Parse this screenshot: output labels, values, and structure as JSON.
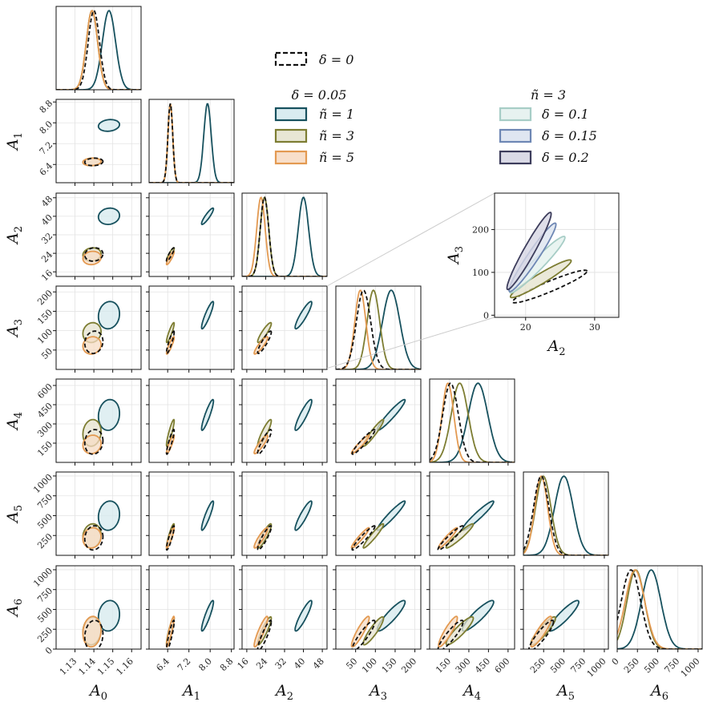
{
  "chart_data": {
    "type": "corner",
    "title": "",
    "parameters": [
      {
        "label": "A0",
        "sub": "0",
        "range": [
          1.12,
          1.165
        ],
        "ticks": [
          1.13,
          1.14,
          1.15,
          1.16
        ],
        "ticklabels": [
          "1.13",
          "1.14",
          "1.15",
          "1.16"
        ]
      },
      {
        "label": "A1",
        "sub": "1",
        "range": [
          5.7,
          8.9
        ],
        "ticks": [
          6.4,
          7.2,
          8.0,
          8.8
        ],
        "ticklabels": [
          "6.4",
          "7.2",
          "8.0",
          "8.8"
        ]
      },
      {
        "label": "A2",
        "sub": "2",
        "range": [
          14,
          50
        ],
        "ticks": [
          16,
          24,
          32,
          40,
          48
        ],
        "ticklabels": [
          "16",
          "24",
          "32",
          "40",
          "48"
        ]
      },
      {
        "label": "A3",
        "sub": "3",
        "range": [
          0,
          215
        ],
        "ticks": [
          50,
          100,
          150,
          200
        ],
        "ticklabels": [
          "50",
          "100",
          "150",
          "200"
        ]
      },
      {
        "label": "A4",
        "sub": "4",
        "range": [
          0,
          650
        ],
        "ticks": [
          150,
          300,
          450,
          600
        ],
        "ticklabels": [
          "150",
          "300",
          "450",
          "600"
        ]
      },
      {
        "label": "A5",
        "sub": "5",
        "range": [
          0,
          1050
        ],
        "ticks": [
          250,
          500,
          750,
          1000
        ],
        "ticklabels": [
          "250",
          "500",
          "750",
          "1000"
        ]
      },
      {
        "label": "A6",
        "sub": "6",
        "range": [
          0,
          1050
        ],
        "ticks": [
          0,
          250,
          500,
          750,
          1000
        ],
        "ticklabels": [
          "0",
          "250",
          "500",
          "750",
          "1000"
        ]
      }
    ],
    "series": [
      {
        "name": "δ = 0",
        "style": "dashed",
        "color": "#111111",
        "mean": [
          1.14,
          6.5,
          23.5,
          70,
          160,
          220,
          170
        ],
        "sd": [
          0.003,
          0.09,
          1.8,
          18,
          60,
          95,
          120
        ],
        "rho": [
          [
            0.1,
            0.1,
            0.1,
            0.1,
            0.1,
            0.1
          ],
          [
            0.9,
            0.9,
            0.9,
            0.9,
            0.9
          ],
          [
            0.9,
            0.9,
            0.9,
            0.9
          ],
          [
            0.95,
            0.95,
            0.9
          ],
          [
            0.95,
            0.9
          ],
          [
            0.9
          ]
        ]
      },
      {
        "name": "δ = 0.05, ñ = 1",
        "style": "solid",
        "color": "#17515e",
        "fill": "#d5eaee",
        "mean": [
          1.148,
          7.9,
          40,
          140,
          370,
          500,
          420
        ],
        "sd": [
          0.0035,
          0.14,
          2.2,
          22,
          75,
          115,
          120
        ],
        "rho": [
          [
            0.15,
            0.1,
            0.1,
            0.1,
            0.1,
            0.1
          ],
          [
            0.9,
            0.9,
            0.9,
            0.9,
            0.9
          ],
          [
            0.9,
            0.9,
            0.9,
            0.9
          ],
          [
            0.95,
            0.95,
            0.9
          ],
          [
            0.95,
            0.9
          ],
          [
            0.9
          ]
        ]
      },
      {
        "name": "δ = 0.05, ñ = 3",
        "style": "solid",
        "color": "#7d7d32",
        "fill": "#e6e3cf",
        "mean": [
          1.139,
          6.5,
          23.5,
          95,
          230,
          245,
          230
        ],
        "sd": [
          0.003,
          0.09,
          1.8,
          16,
          65,
          95,
          110
        ],
        "rho": [
          [
            0.1,
            0.1,
            0.1,
            0.1,
            0.1,
            0.1
          ],
          [
            0.9,
            0.9,
            0.9,
            0.9,
            0.9
          ],
          [
            0.9,
            0.9,
            0.9,
            0.9
          ],
          [
            0.95,
            0.95,
            0.9
          ],
          [
            0.95,
            0.9
          ],
          [
            0.9
          ]
        ]
      },
      {
        "name": "δ = 0.05, ñ = 5",
        "style": "solid",
        "color": "#e39a52",
        "fill": "#f7dcc4",
        "mean": [
          1.139,
          6.5,
          22,
          62,
          140,
          220,
          220
        ],
        "sd": [
          0.003,
          0.09,
          1.8,
          14,
          45,
          80,
          120
        ],
        "rho": [
          [
            0.1,
            0.1,
            0.1,
            0.1,
            0.1,
            0.1
          ],
          [
            0.9,
            0.9,
            0.9,
            0.9,
            0.9
          ],
          [
            0.9,
            0.9,
            0.9,
            0.9
          ],
          [
            0.95,
            0.95,
            0.9
          ],
          [
            0.95,
            0.9
          ],
          [
            0.9
          ]
        ]
      }
    ],
    "inset": {
      "title": "",
      "xlabel": "A2",
      "ylabel": "A3",
      "xlim": [
        15.5,
        33.5
      ],
      "ylim": [
        -5,
        285
      ],
      "xticks": [
        20,
        30
      ],
      "yticks": [
        0,
        100,
        200
      ],
      "ellipses": [
        {
          "name": "δ = 0",
          "style": "dashed",
          "color": "#111111",
          "fill": "none",
          "cx": 23.5,
          "cy": 67,
          "sx": 2.7,
          "sy": 19,
          "rho": 0.94
        },
        {
          "name": "ñ = 3, δ = 0.05",
          "style": "solid",
          "color": "#7d7d32",
          "fill": "#e6e3cf",
          "cx": 22.2,
          "cy": 85,
          "sx": 2.2,
          "sy": 22,
          "rho": 0.95
        },
        {
          "name": "ñ = 3, δ = 0.1",
          "style": "solid",
          "color": "#a7cdc6",
          "fill": "#e4f1ee",
          "cx": 21.7,
          "cy": 118,
          "sx": 2.0,
          "sy": 33,
          "rho": 0.96
        },
        {
          "name": "ñ = 3, δ = 0.15",
          "style": "solid",
          "color": "#6e87b4",
          "fill": "#dce3ef",
          "cx": 21.0,
          "cy": 135,
          "sx": 1.7,
          "sy": 40,
          "rho": 0.96
        },
        {
          "name": "ñ = 3, δ = 0.2",
          "style": "solid",
          "color": "#3d3d5c",
          "fill": "#d6d6e3",
          "cx": 20.5,
          "cy": 150,
          "sx": 1.6,
          "sy": 45,
          "rho": 0.96
        }
      ]
    },
    "legend": {
      "baseline_label": "δ = 0",
      "group1_title": "δ = 0.05",
      "group1": [
        "ñ = 1",
        "ñ = 3",
        "ñ = 5"
      ],
      "group2_title": "ñ = 3",
      "group2": [
        "δ = 0.1",
        "δ = 0.15",
        "δ = 0.2"
      ],
      "group2_colors": [
        "#a7cdc6",
        "#6e87b4",
        "#3d3d5c"
      ],
      "group2_fills": [
        "#e4f1ee",
        "#dce3ef",
        "#d6d6e3"
      ]
    }
  }
}
